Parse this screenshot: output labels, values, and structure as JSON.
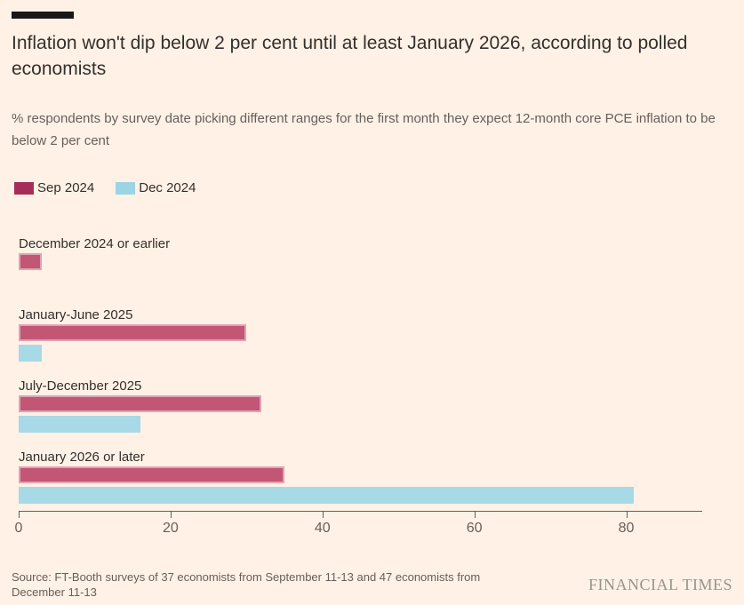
{
  "header": {
    "title": "Inflation won't dip below 2 per cent until at least January 2026, according to polled economists",
    "subtitle": "% respondents by survey date picking different ranges for the first month they expect 12-month core PCE inflation to be below 2 per cent"
  },
  "legend": [
    {
      "label": "Sep 2024",
      "color": "#A62C5A"
    },
    {
      "label": "Dec 2024",
      "color": "#9BD5E4"
    }
  ],
  "chart_data": {
    "type": "bar",
    "orientation": "horizontal",
    "title": "Inflation won't dip below 2 per cent until at least January 2026, according to polled economists",
    "xlabel": "",
    "ylabel": "",
    "categories": [
      "December 2024 or earlier",
      "January-June 2025",
      "July-December 2025",
      "January 2026 or later"
    ],
    "series": [
      {
        "name": "Sep 2024",
        "color": "#C25674",
        "values": [
          3,
          30,
          32,
          35
        ]
      },
      {
        "name": "Dec 2024",
        "color": "#A8D9E7",
        "values": [
          0,
          3,
          16,
          81
        ]
      }
    ],
    "xlim": [
      0,
      90
    ],
    "x_ticks": [
      "0",
      "20",
      "40",
      "60",
      "80"
    ],
    "grid": false,
    "legend_position": "top-left"
  },
  "footer": {
    "source": "Source: FT-Booth surveys of 37 economists from September 11-13 and 47 economists from December 11-13",
    "brand": "FINANCIAL TIMES"
  },
  "colors": {
    "background": "#FFF1E5",
    "text_primary": "#33302E",
    "text_secondary": "#66605C",
    "accent_bar": "#1A1817",
    "sep_bar_fill": "#C25674",
    "sep_bar_edge": "#DFA3B5",
    "sep_legend_swatch": "#A62C5A",
    "dec_bar_fill": "#A8D9E7",
    "axis": "#66605C"
  }
}
